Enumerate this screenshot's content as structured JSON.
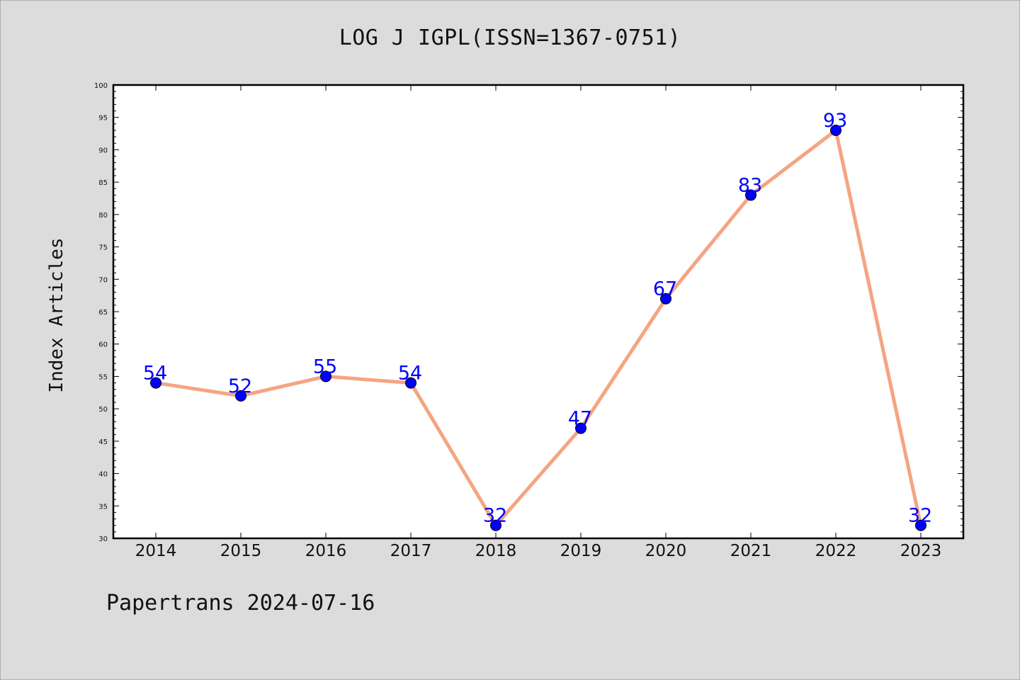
{
  "title": "LOG J IGPL(ISSN=1367-0751)",
  "footer": "Papertrans 2024-07-16",
  "colors": {
    "background": "#dcdcdc",
    "plot_background": "#ffffff",
    "line": "#f4a582",
    "marker": "#0000ff",
    "data_label": "#0000ff"
  },
  "chart_data": {
    "type": "line",
    "title": "LOG J IGPL(ISSN=1367-0751)",
    "xlabel": "",
    "ylabel": "Index Articles",
    "categories": [
      "2014",
      "2015",
      "2016",
      "2017",
      "2018",
      "2019",
      "2020",
      "2021",
      "2022",
      "2023"
    ],
    "series": [
      {
        "values": [
          54,
          52,
          55,
          54,
          32,
          47,
          67,
          83,
          93,
          32
        ]
      }
    ],
    "ylim": [
      30,
      100
    ],
    "yticks": [
      30,
      35,
      40,
      45,
      50,
      55,
      60,
      65,
      70,
      75,
      80,
      85,
      90,
      95,
      100
    ],
    "grid": false,
    "legend": "none",
    "data_labels": true
  }
}
